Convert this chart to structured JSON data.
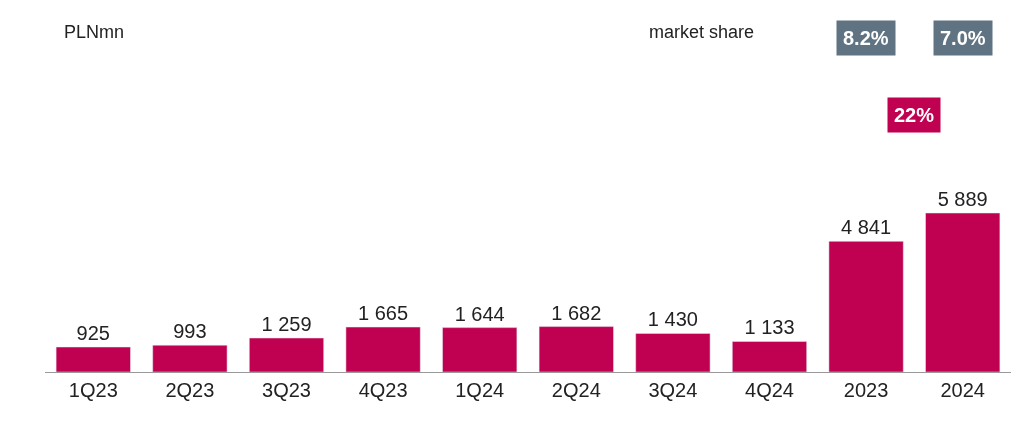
{
  "chart_data": {
    "type": "bar",
    "categories": [
      "1Q23",
      "2Q23",
      "3Q23",
      "4Q23",
      "1Q24",
      "2Q24",
      "3Q24",
      "4Q24",
      "2023",
      "2024"
    ],
    "values": [
      925,
      993,
      1259,
      1665,
      1644,
      1682,
      1430,
      1133,
      4841,
      5889
    ],
    "value_labels": [
      "925",
      "993",
      "1 259",
      "1 665",
      "1 644",
      "1 682",
      "1 430",
      "1 133",
      "4 841",
      "5 889"
    ],
    "color": "#c00050",
    "annotations": [
      "PLNmn",
      "market share",
      "8.2%",
      "7.0%",
      "22%"
    ]
  }
}
